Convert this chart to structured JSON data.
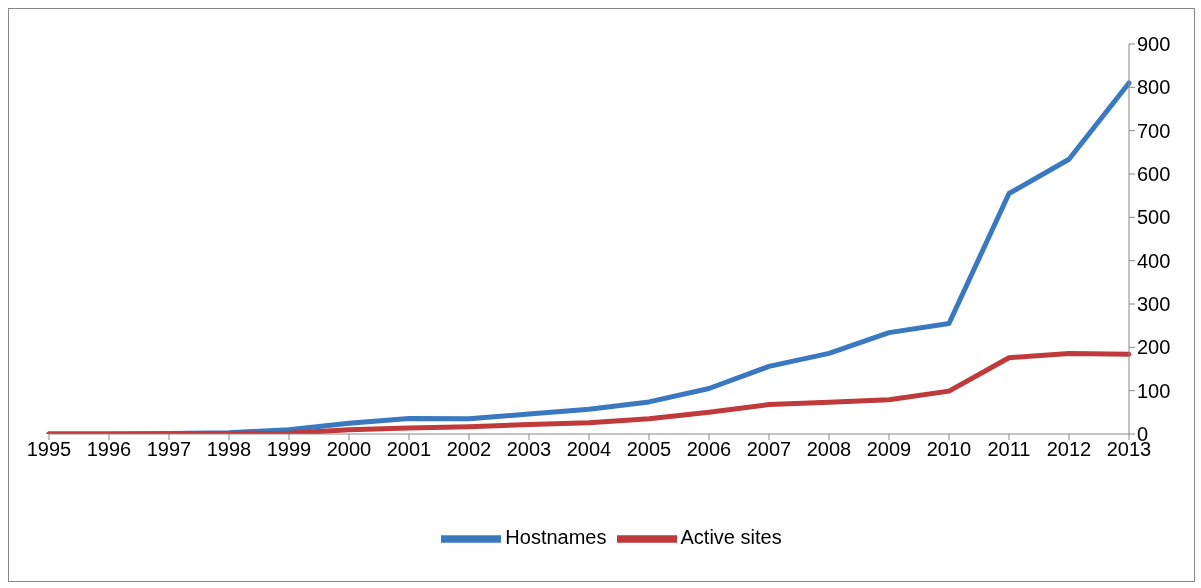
{
  "chart_data": {
    "type": "line",
    "categories": [
      "1995",
      "1996",
      "1997",
      "1998",
      "1999",
      "2000",
      "2001",
      "2002",
      "2003",
      "2004",
      "2005",
      "2006",
      "2007",
      "2008",
      "2009",
      "2010",
      "2011",
      "2012",
      "2013"
    ],
    "series": [
      {
        "name": "Hostnames",
        "color": "#3a78bf",
        "values": [
          0,
          0,
          1,
          3,
          10,
          25,
          36,
          35,
          46,
          57,
          74,
          105,
          156,
          186,
          234,
          255,
          555,
          634,
          810
        ]
      },
      {
        "name": "Active sites",
        "color": "#c0393b",
        "values": [
          0,
          0,
          0,
          1,
          2,
          10,
          14,
          17,
          22,
          26,
          35,
          50,
          68,
          73,
          79,
          99,
          176,
          186,
          184
        ]
      }
    ],
    "ylim": [
      0,
      900
    ],
    "yticks": [
      0,
      100,
      200,
      300,
      400,
      500,
      600,
      700,
      800,
      900
    ],
    "legend": "bottom",
    "marker": "none",
    "line_style": "solid"
  }
}
